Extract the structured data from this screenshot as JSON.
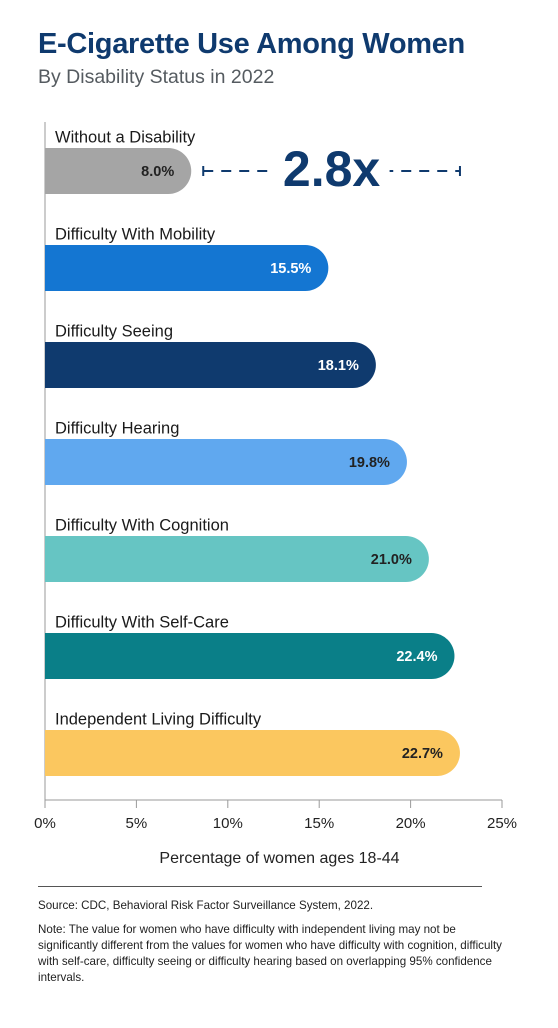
{
  "title": "E-Cigarette Use Among Women",
  "subtitle": "By Disability Status in 2022",
  "source": "Source: CDC, Behavioral Risk Factor Surveillance System, 2022.",
  "note": "Note: The value for women who have difficulty with independent living may not be significantly different from the values for women who have difficulty with cognition, difficulty with self-care, difficulty seeing or difficulty hearing based on overlapping 95% confidence intervals.",
  "chart_data": {
    "type": "bar",
    "orientation": "horizontal",
    "categories": [
      "Without a Disability",
      "Difficulty With Mobility",
      "Difficulty Seeing",
      "Difficulty Hearing",
      "Difficulty With Cognition",
      "Difficulty With Self-Care",
      "Independent Living Difficulty"
    ],
    "values": [
      8.0,
      15.5,
      18.1,
      19.8,
      21.0,
      22.4,
      22.7
    ],
    "value_labels": [
      "8.0%",
      "15.5%",
      "18.1%",
      "19.8%",
      "21.0%",
      "22.4%",
      "22.7%"
    ],
    "colors": [
      "#a5a5a5",
      "#1476d2",
      "#0f3a6e",
      "#60a8ef",
      "#66c5c3",
      "#0a7f88",
      "#fbc75f"
    ],
    "label_colors": [
      "#222222",
      "#ffffff",
      "#ffffff",
      "#222222",
      "#222222",
      "#ffffff",
      "#222222"
    ],
    "xlim": [
      0,
      25
    ],
    "xticks": [
      0,
      5,
      10,
      15,
      20,
      25
    ],
    "xtick_labels": [
      "0%",
      "5%",
      "10%",
      "15%",
      "20%",
      "25%"
    ],
    "xlabel": "Percentage of women ages 18-44",
    "annotation": {
      "text": "2.8x",
      "from_value": 8.0,
      "to_value": 22.7,
      "color": "#0f3a6e"
    },
    "grid": false
  }
}
